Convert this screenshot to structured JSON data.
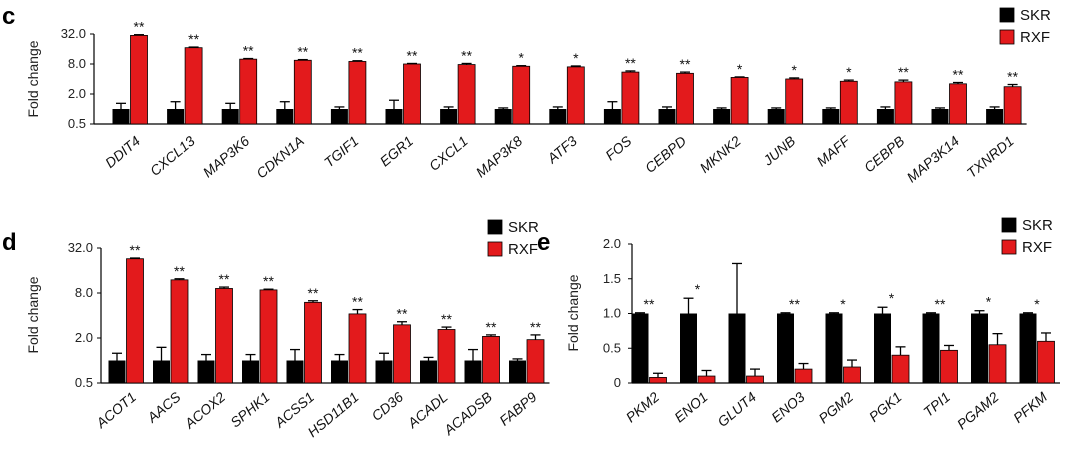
{
  "colors": {
    "skr": "#000000",
    "rxf": "#e31a1c"
  },
  "chart_data": [
    {
      "panel": "c",
      "type": "bar",
      "scale": "log2",
      "ylabel": "Fold change",
      "ylim": [
        0.5,
        32.0
      ],
      "yticks": [
        "32.0",
        "8.0",
        "2.0",
        "0.5"
      ],
      "legend": [
        "SKR",
        "RXF"
      ],
      "categories": [
        "DDIT4",
        "CXCL13",
        "MAP3K6",
        "CDKN1A",
        "TGIF1",
        "EGR1",
        "CXCL1",
        "MAP3K8",
        "ATF3",
        "FOS",
        "CEBPD",
        "MKNK2",
        "JUNB",
        "MAFF",
        "CEBPB",
        "MAP3K14",
        "TXNRD1"
      ],
      "series": [
        {
          "name": "SKR",
          "values": [
            1,
            1,
            1,
            1,
            1,
            1,
            1,
            1,
            1,
            1,
            1,
            1,
            1,
            1,
            1,
            1,
            1
          ],
          "errors": [
            0.3,
            0.4,
            0.3,
            0.4,
            0.1,
            0.5,
            0.1,
            0.05,
            0.1,
            0.4,
            0.1,
            0.05,
            0.05,
            0.05,
            0.1,
            0.05,
            0.1
          ]
        },
        {
          "name": "RXF",
          "values": [
            30,
            17,
            10,
            9.5,
            9,
            8,
            7.8,
            7.2,
            7,
            5.5,
            5.2,
            4.3,
            4,
            3.6,
            3.5,
            3.2,
            2.8
          ],
          "errors": [
            1,
            0.5,
            0.3,
            0.3,
            0.3,
            0.2,
            0.4,
            0.2,
            0.3,
            0.3,
            0.3,
            0.1,
            0.2,
            0.2,
            0.3,
            0.2,
            0.3
          ]
        }
      ],
      "significance": [
        "**",
        "**",
        "**",
        "**",
        "**",
        "**",
        "**",
        "*",
        "*",
        "**",
        "**",
        "*",
        "*",
        "*",
        "**",
        "**",
        "**"
      ]
    },
    {
      "panel": "d",
      "type": "bar",
      "scale": "log2",
      "ylabel": "Fold change",
      "ylim": [
        0.5,
        32.0
      ],
      "yticks": [
        "32.0",
        "8.0",
        "2.0",
        "0.5"
      ],
      "legend": [
        "SKR",
        "RXF"
      ],
      "categories": [
        "ACOT1",
        "AACS",
        "ACOX2",
        "SPHK1",
        "ACSS1",
        "HSD11B1",
        "CD36",
        "ACADL",
        "ACADSB",
        "FABP9"
      ],
      "series": [
        {
          "name": "SKR",
          "values": [
            1,
            1,
            1,
            1,
            1,
            1,
            1,
            1,
            1,
            1
          ],
          "errors": [
            0.25,
            0.5,
            0.2,
            0.2,
            0.4,
            0.2,
            0.25,
            0.1,
            0.4,
            0.05
          ]
        },
        {
          "name": "RXF",
          "values": [
            23,
            12,
            9.2,
            8.8,
            6,
            4.2,
            3,
            2.6,
            2.1,
            1.9
          ],
          "errors": [
            0.5,
            0.4,
            0.4,
            0.2,
            0.3,
            0.6,
            0.3,
            0.2,
            0.1,
            0.3
          ]
        }
      ],
      "significance": [
        "**",
        "**",
        "**",
        "**",
        "**",
        "**",
        "**",
        "**",
        "**",
        "**"
      ]
    },
    {
      "panel": "e",
      "type": "bar",
      "scale": "linear",
      "ylabel": "Fold change",
      "ylim": [
        0,
        2.0
      ],
      "yticks": [
        "2.0",
        "1.5",
        "1.0",
        "0.5",
        "0"
      ],
      "legend": [
        "SKR",
        "RXF"
      ],
      "categories": [
        "PKM2",
        "ENO1",
        "GLUT4",
        "ENO3",
        "PGM2",
        "PGK1",
        "TPI1",
        "PGAM2",
        "PFKM"
      ],
      "series": [
        {
          "name": "SKR",
          "values": [
            1,
            1,
            1,
            1,
            1,
            1,
            1,
            1,
            1
          ],
          "errors": [
            0.01,
            0.22,
            0.72,
            0.01,
            0.01,
            0.09,
            0.01,
            0.04,
            0.01
          ]
        },
        {
          "name": "RXF",
          "values": [
            0.08,
            0.1,
            0.1,
            0.2,
            0.23,
            0.4,
            0.47,
            0.55,
            0.6
          ],
          "errors": [
            0.06,
            0.08,
            0.1,
            0.08,
            0.1,
            0.12,
            0.07,
            0.16,
            0.12
          ]
        }
      ],
      "significance": [
        "**",
        "*",
        "",
        "**",
        "*",
        "*",
        "**",
        "*",
        "*"
      ]
    }
  ]
}
